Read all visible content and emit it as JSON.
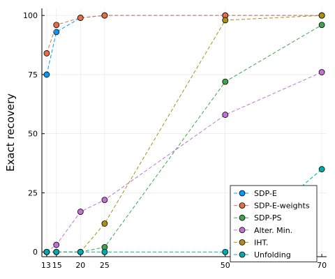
{
  "chart_data": {
    "type": "line",
    "title": "",
    "xlabel": "",
    "ylabel": "Exact recovery",
    "xlim": [
      12,
      71
    ],
    "ylim": [
      -2,
      103
    ],
    "x_ticks": [
      13,
      15,
      20,
      25,
      50,
      70
    ],
    "y_ticks": [
      0,
      25,
      50,
      75,
      100
    ],
    "grid": true,
    "legend_position": "bottom-right",
    "series": [
      {
        "name": "SDP-E",
        "color": "#009AFA",
        "x": [
          13,
          15,
          20,
          25,
          50,
          70
        ],
        "y": [
          75,
          93,
          99,
          100,
          100,
          100
        ]
      },
      {
        "name": "SDP-E-weights",
        "color": "#E36F47",
        "x": [
          13,
          15,
          20,
          25,
          50,
          70
        ],
        "y": [
          84,
          96,
          99,
          100,
          100,
          100
        ]
      },
      {
        "name": "SDP-PS",
        "color": "#3EA44E",
        "x": [
          13,
          15,
          20,
          25,
          50,
          70
        ],
        "y": [
          0,
          0,
          0,
          2,
          72,
          96
        ]
      },
      {
        "name": "Alter. Min.",
        "color": "#C271D2",
        "x": [
          13,
          15,
          20,
          25,
          50,
          70
        ],
        "y": [
          0,
          3,
          17,
          22,
          58,
          76
        ]
      },
      {
        "name": "IHT.",
        "color": "#AC8E18",
        "x": [
          13,
          15,
          20,
          25,
          50,
          70
        ],
        "y": [
          0,
          0,
          0,
          12,
          98,
          100
        ]
      },
      {
        "name": "Unfolding",
        "color": "#00A9AD",
        "x": [
          13,
          15,
          20,
          25,
          50,
          70
        ],
        "y": [
          0,
          0,
          0,
          0,
          0,
          35
        ]
      }
    ]
  }
}
